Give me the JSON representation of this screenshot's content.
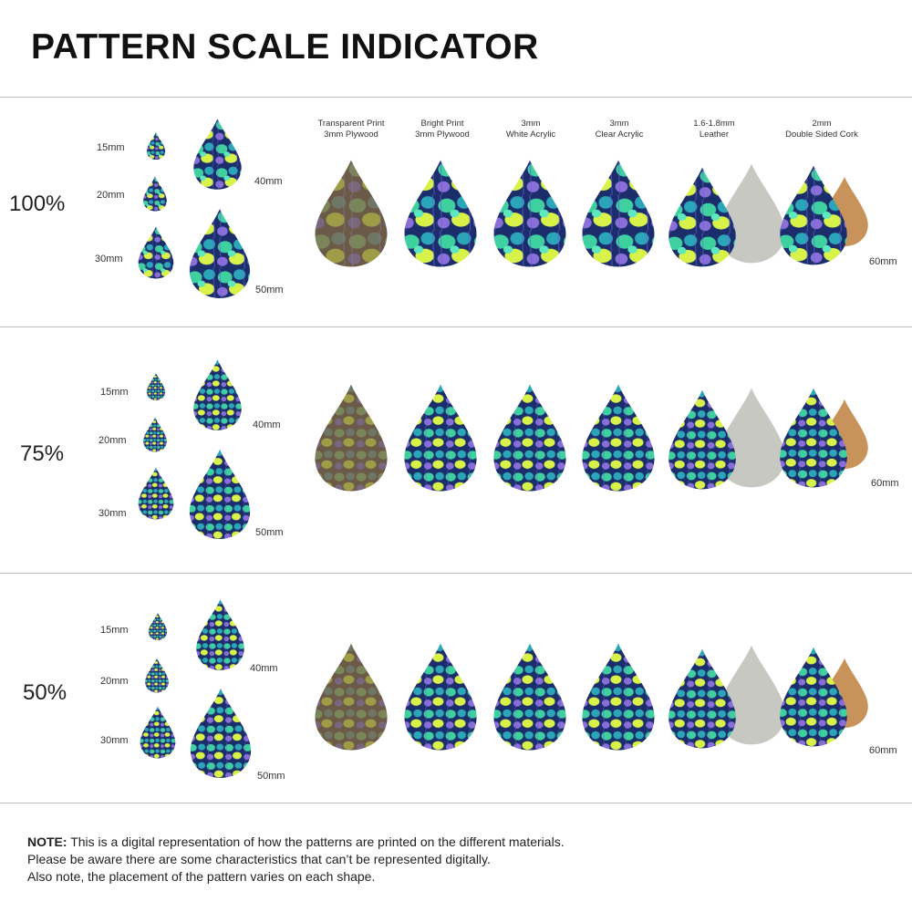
{
  "title": "PATTERN SCALE INDICATOR",
  "materials": [
    {
      "line1": "Transparent Print",
      "line2": "3mm Plywood"
    },
    {
      "line1": "Bright Print",
      "line2": "3mm Plywood"
    },
    {
      "line1": "3mm",
      "line2": "White Acrylic"
    },
    {
      "line1": "3mm",
      "line2": "Clear Acrylic"
    },
    {
      "line1": "1.6-1.8mm",
      "line2": "Leather"
    },
    {
      "line1": "2mm",
      "line2": "Double Sided Cork"
    }
  ],
  "sections": [
    {
      "scale": "100%",
      "sizes": {
        "s15": "15mm",
        "s20": "20mm",
        "s30": "30mm",
        "s40": "40mm",
        "s50": "50mm"
      },
      "material_size": "60mm"
    },
    {
      "scale": "75%",
      "sizes": {
        "s15": "15mm",
        "s20": "20mm",
        "s30": "30mm",
        "s40": "40mm",
        "s50": "50mm"
      },
      "material_size": "60mm"
    },
    {
      "scale": "50%",
      "sizes": {
        "s15": "15mm",
        "s20": "20mm",
        "s30": "30mm",
        "s40": "40mm",
        "s50": "50mm"
      },
      "material_size": "60mm"
    }
  ],
  "colors": {
    "pattern_dark": "#1b2d6b",
    "pattern_green": "#3fd0a0",
    "pattern_lime": "#d8f24a",
    "pattern_purple": "#8a6fd8",
    "plywood": "#6b5a48",
    "leather_back": "#c8c8c2",
    "cork_back": "#c8935a"
  },
  "note": {
    "lead": "NOTE:",
    "line1": " This is a digital representation of how the patterns are printed on the different materials.",
    "line2": "Please be aware there are some characteristics that can’t be represented digitally.",
    "line3": "Also note, the placement of the pattern varies on each shape."
  }
}
